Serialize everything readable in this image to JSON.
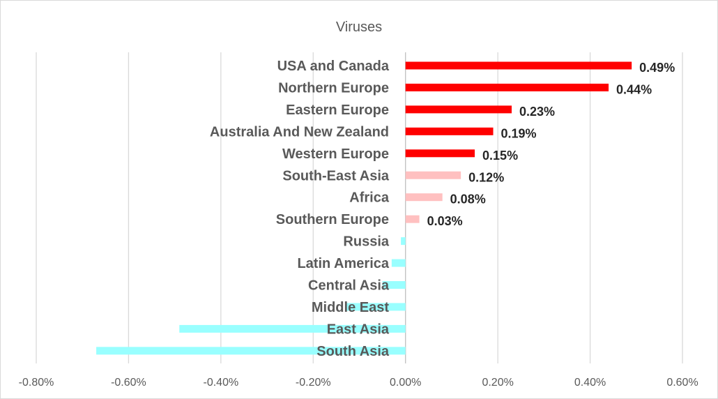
{
  "chart_data": {
    "type": "bar",
    "orientation": "horizontal",
    "title": "Viruses",
    "xlabel": "",
    "ylabel": "",
    "xlim": [
      -0.8,
      0.6
    ],
    "grid": true,
    "x_ticks": [
      "-0.80%",
      "-0.60%",
      "-0.40%",
      "-0.20%",
      "0.00%",
      "0.20%",
      "0.40%",
      "0.60%"
    ],
    "x_tick_values": [
      -0.8,
      -0.6,
      -0.4,
      -0.2,
      0,
      0.2,
      0.4,
      0.6
    ],
    "categories": [
      "USA and Canada",
      "Northern Europe",
      "Eastern Europe",
      "Australia And New Zealand",
      "Western Europe",
      "South-East Asia",
      "Africa",
      "Southern Europe",
      "Russia",
      "Latin America",
      "Central Asia",
      "Middle East",
      "East Asia",
      "South Asia"
    ],
    "values": [
      0.49,
      0.44,
      0.23,
      0.19,
      0.15,
      0.12,
      0.08,
      0.03,
      -0.01,
      -0.03,
      -0.05,
      -0.13,
      -0.49,
      -0.67
    ],
    "data_labels": [
      "0.49%",
      "0.44%",
      "0.23%",
      "0.19%",
      "0.15%",
      "0.12%",
      "0.08%",
      "0.03%",
      "",
      "",
      "",
      "",
      "",
      ""
    ],
    "colors": {
      "high": "#FF0000",
      "low_positive": "#FFC0C0",
      "negative": "#99FFFF"
    },
    "unit": "%"
  }
}
